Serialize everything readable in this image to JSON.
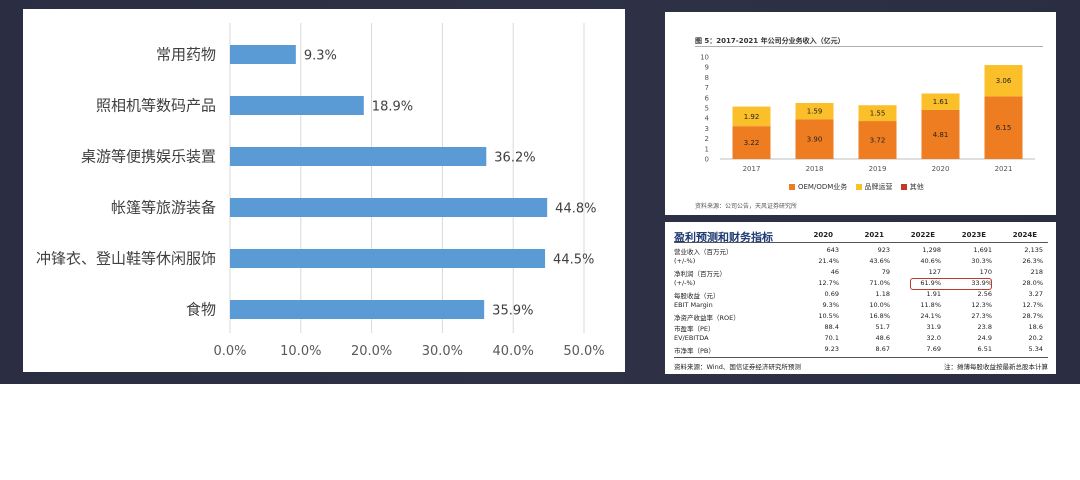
{
  "colors": {
    "slide_bg": "#2e3145",
    "bar_blue": "#5b9bd5",
    "oem_orange": "#ee7d22",
    "brand_yellow": "#fbbf2a",
    "other_gray": "#c0392b",
    "table_title": "#1f3b73"
  },
  "chart_data": [
    {
      "type": "bar",
      "orientation": "horizontal",
      "categories": [
        "常用药物",
        "照相机等数码产品",
        "桌游等便携娱乐装置",
        "帐篷等旅游装备",
        "冲锋衣、登山鞋等休闲服饰",
        "食物"
      ],
      "values": [
        9.3,
        18.9,
        36.2,
        44.8,
        44.5,
        35.9
      ],
      "value_labels": [
        "9.3%",
        "18.9%",
        "36.2%",
        "44.8%",
        "44.5%",
        "35.9%"
      ],
      "xlim": [
        0,
        50
      ],
      "xticks": [
        0,
        10,
        20,
        30,
        40,
        50
      ],
      "xtick_labels": [
        "0.0%",
        "10.0%",
        "20.0%",
        "30.0%",
        "40.0%",
        "50.0%"
      ],
      "title": "",
      "xlabel": "",
      "ylabel": "",
      "grid": "vertical"
    },
    {
      "type": "bar",
      "stacked": true,
      "title": "图 5：2017-2021 年公司分业务收入（亿元）",
      "categories": [
        "2017",
        "2018",
        "2019",
        "2020",
        "2021"
      ],
      "series": [
        {
          "name": "OEM/ODM业务",
          "values": [
            3.22,
            3.9,
            3.72,
            4.81,
            6.15
          ],
          "labels": [
            "3.22",
            "3.90",
            "3.72",
            "4.81",
            "6.15"
          ]
        },
        {
          "name": "品牌运营",
          "values": [
            1.92,
            1.59,
            1.55,
            1.61,
            3.06
          ],
          "labels": [
            "1.92",
            "1.59",
            "1.55",
            "1.61",
            "3.06"
          ]
        },
        {
          "name": "其他",
          "values": [
            0,
            0,
            0,
            0,
            0
          ],
          "labels": [
            "",
            "",
            "",
            "",
            ""
          ]
        }
      ],
      "ylim": [
        0,
        10
      ],
      "yticks": [
        "0",
        "1",
        "2",
        "3",
        "4",
        "5",
        "6",
        "7",
        "8",
        "9",
        "10"
      ],
      "legend_position": "bottom",
      "grid": false,
      "source": "资料来源：公司公告，天风证券研究所"
    },
    {
      "type": "table",
      "title": "盈利预测和财务指标",
      "columns": [
        "2020",
        "2021",
        "2022E",
        "2023E",
        "2024E"
      ],
      "rows": [
        {
          "label": "营业收入（百万元）",
          "values": [
            "643",
            "923",
            "1,298",
            "1,691",
            "2,135"
          ]
        },
        {
          "label": "(+/-%)",
          "values": [
            "21.4%",
            "43.6%",
            "40.6%",
            "30.3%",
            "26.3%"
          ]
        },
        {
          "label": "净利润（百万元）",
          "values": [
            "46",
            "79",
            "127",
            "170",
            "218"
          ]
        },
        {
          "label": "(+/-%)",
          "values": [
            "12.7%",
            "71.0%",
            "61.9%",
            "33.9%",
            "28.0%"
          ]
        },
        {
          "label": "每股收益（元）",
          "values": [
            "0.69",
            "1.18",
            "1.91",
            "2.56",
            "3.27"
          ]
        },
        {
          "label": "EBIT Margin",
          "values": [
            "9.3%",
            "10.0%",
            "11.8%",
            "12.3%",
            "12.7%"
          ]
        },
        {
          "label": "净资产收益率（ROE）",
          "values": [
            "10.5%",
            "16.8%",
            "24.1%",
            "27.3%",
            "28.7%"
          ]
        },
        {
          "label": "市盈率（PE）",
          "values": [
            "88.4",
            "51.7",
            "31.9",
            "23.8",
            "18.6"
          ]
        },
        {
          "label": "EV/EBITDA",
          "values": [
            "70.1",
            "48.6",
            "32.0",
            "24.9",
            "20.2"
          ]
        },
        {
          "label": "市净率（PB）",
          "values": [
            "9.23",
            "8.67",
            "7.69",
            "6.51",
            "5.34"
          ]
        }
      ],
      "source": "资料来源：Wind、国信证券经济研究所预测",
      "note": "注：摊薄每股收益按最新总股本计算"
    }
  ]
}
